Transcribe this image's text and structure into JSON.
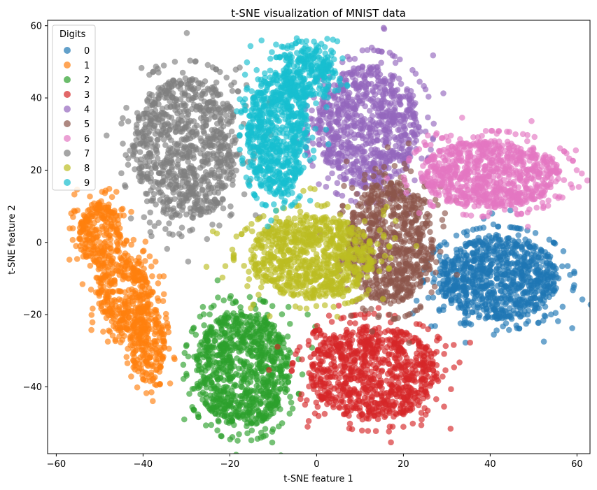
{
  "chart_data": {
    "type": "scatter",
    "title": "t-SNE visualization of MNIST data",
    "xlabel": "t-SNE feature 1",
    "ylabel": "t-SNE feature 2",
    "xlim": [
      -62,
      63
    ],
    "ylim": [
      -58.5,
      61.5
    ],
    "xticks": [
      -60,
      -40,
      -20,
      0,
      20,
      40,
      60
    ],
    "yticks": [
      -40,
      -20,
      0,
      20,
      40,
      60
    ],
    "xtick_labels": [
      "−60",
      "−40",
      "−20",
      "0",
      "20",
      "40",
      "60"
    ],
    "ytick_labels": [
      "−40",
      "−20",
      "0",
      "20",
      "40",
      "60"
    ],
    "grid": false,
    "legend": {
      "title": "Digits",
      "position": "top-left"
    },
    "point_alpha": 0.65,
    "series": [
      {
        "name": "0",
        "color": "#1f77b4",
        "clusters": [
          {
            "cx": 42.0,
            "cy": -10.0,
            "rx": 14.0,
            "ry": 11.5,
            "n": 900,
            "seed": 11
          }
        ]
      },
      {
        "name": "1",
        "color": "#ff7f0e",
        "clusters": [
          {
            "cx": -50.0,
            "cy": 2.0,
            "rx": 5.0,
            "ry": 9.5,
            "n": 260,
            "seed": 21
          },
          {
            "cx": -44.5,
            "cy": -14.0,
            "rx": 6.0,
            "ry": 11.0,
            "n": 300,
            "seed": 22
          },
          {
            "cx": -39.0,
            "cy": -28.0,
            "rx": 4.0,
            "ry": 11.0,
            "n": 240,
            "seed": 23
          }
        ]
      },
      {
        "name": "2",
        "color": "#2ca02c",
        "clusters": [
          {
            "cx": -17.0,
            "cy": -35.0,
            "rx": 11.0,
            "ry": 16.0,
            "n": 900,
            "seed": 31
          }
        ]
      },
      {
        "name": "3",
        "color": "#d62728",
        "clusters": [
          {
            "cx": 13.0,
            "cy": -36.0,
            "rx": 15.0,
            "ry": 13.0,
            "n": 900,
            "seed": 41
          }
        ]
      },
      {
        "name": "4",
        "color": "#9467bd",
        "clusters": [
          {
            "cx": 12.0,
            "cy": 32.0,
            "rx": 12.0,
            "ry": 17.0,
            "n": 850,
            "seed": 51
          }
        ]
      },
      {
        "name": "5",
        "color": "#8c564b",
        "clusters": [
          {
            "cx": 17.0,
            "cy": 0.0,
            "rx": 10.0,
            "ry": 17.0,
            "n": 750,
            "seed": 61
          }
        ]
      },
      {
        "name": "6",
        "color": "#e377c2",
        "clusters": [
          {
            "cx": 40.0,
            "cy": 19.0,
            "rx": 16.0,
            "ry": 9.5,
            "n": 850,
            "seed": 71
          }
        ]
      },
      {
        "name": "7",
        "color": "#7f7f7f",
        "clusters": [
          {
            "cx": -30.0,
            "cy": 26.0,
            "rx": 12.5,
            "ry": 19.5,
            "n": 900,
            "seed": 81
          }
        ]
      },
      {
        "name": "8",
        "color": "#bcbd22",
        "clusters": [
          {
            "cx": -1.0,
            "cy": -4.0,
            "rx": 14.5,
            "ry": 11.5,
            "n": 850,
            "seed": 91
          }
        ]
      },
      {
        "name": "9",
        "color": "#17becf",
        "clusters": [
          {
            "cx": -9.0,
            "cy": 30.0,
            "rx": 7.0,
            "ry": 17.0,
            "n": 700,
            "seed": 101
          },
          {
            "cx": -2.0,
            "cy": 47.0,
            "rx": 6.0,
            "ry": 7.0,
            "n": 250,
            "seed": 102
          }
        ]
      }
    ]
  }
}
